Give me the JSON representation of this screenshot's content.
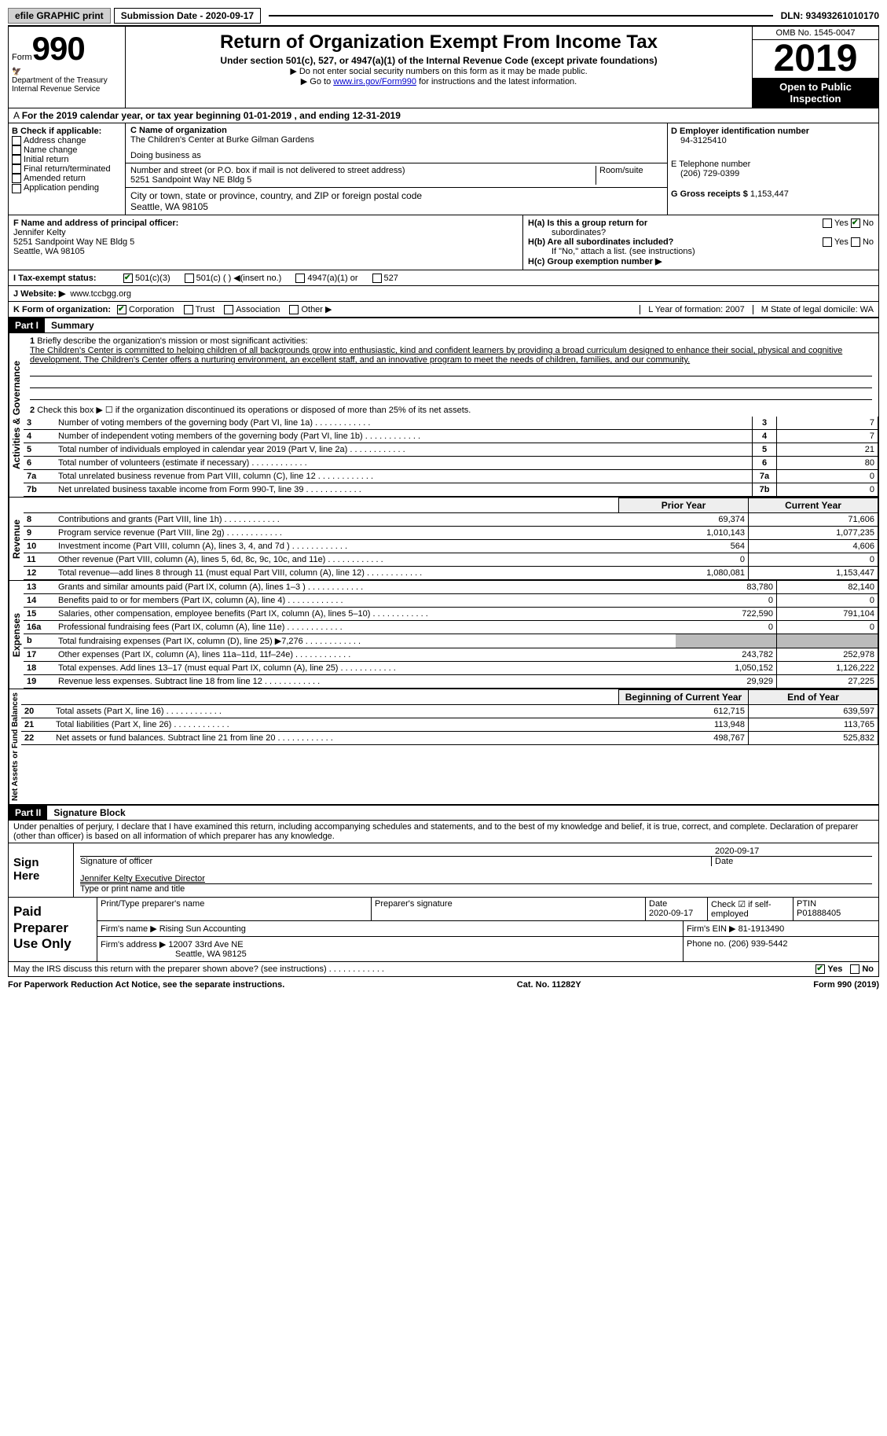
{
  "topbar": {
    "efile": "efile GRAPHIC print",
    "submission": "Submission Date - 2020-09-17",
    "dln": "DLN: 93493261010170"
  },
  "header": {
    "form": "Form",
    "num": "990",
    "dept": "Department of the Treasury\nInternal Revenue Service",
    "title": "Return of Organization Exempt From Income Tax",
    "sub": "Under section 501(c), 527, or 4947(a)(1) of the Internal Revenue Code (except private foundations)",
    "note1": "Do not enter social security numbers on this form as it may be made public.",
    "note2_pre": "Go to ",
    "note2_link": "www.irs.gov/Form990",
    "note2_post": " for instructions and the latest information.",
    "omb": "OMB No. 1545-0047",
    "year": "2019",
    "inspect": "Open to Public Inspection"
  },
  "ty_line": "For the 2019 calendar year, or tax year beginning 01-01-2019    , and ending 12-31-2019",
  "colB": {
    "hdr": "B Check if applicable:",
    "items": [
      "Address change",
      "Name change",
      "Initial return",
      "Final return/terminated",
      "Amended return",
      "Application pending"
    ]
  },
  "colC": {
    "name_lbl": "C Name of organization",
    "name": "The Children's Center at Burke Gilman Gardens",
    "dba": "Doing business as",
    "street_lbl": "Number and street (or P.O. box if mail is not delivered to street address)",
    "room_lbl": "Room/suite",
    "street": "5251 Sandpoint Way NE Bldg 5",
    "city_lbl": "City or town, state or province, country, and ZIP or foreign postal code",
    "city": "Seattle, WA  98105"
  },
  "colD": {
    "ein_lbl": "D Employer identification number",
    "ein": "94-3125410",
    "tel_lbl": "E Telephone number",
    "tel": "(206) 729-0399",
    "gross_lbl": "G Gross receipts $",
    "gross": "1,153,447"
  },
  "F": {
    "lbl": "F  Name and address of principal officer:",
    "name": "Jennifer Kelty",
    "addr1": "5251 Sandpoint Way NE Bldg 5",
    "addr2": "Seattle, WA  98105"
  },
  "H": {
    "a": "H(a)  Is this a group return for",
    "a2": "subordinates?",
    "yes": "Yes",
    "no": "No",
    "b": "H(b)  Are all subordinates included?",
    "b2": "If \"No,\" attach a list. (see instructions)",
    "c": "H(c)  Group exemption number ▶"
  },
  "I": {
    "lbl": "I   Tax-exempt status:",
    "opts": [
      "501(c)(3)",
      "501(c) (  ) ◀(insert no.)",
      "4947(a)(1) or",
      "527"
    ]
  },
  "J": {
    "lbl": "J   Website: ▶",
    "val": "www.tccbgg.org"
  },
  "K": {
    "lbl": "K Form of organization:",
    "opts": [
      "Corporation",
      "Trust",
      "Association",
      "Other ▶"
    ]
  },
  "LM": {
    "L": "L Year of formation: 2007",
    "M": "M State of legal domicile: WA"
  },
  "part1": {
    "hdr": "Part I",
    "title": "Summary",
    "vtab1": "Activities & Governance",
    "vtab2": "Revenue",
    "vtab3": "Expenses",
    "vtab4": "Net Assets or Fund Balances"
  },
  "line1": {
    "lbl": "Briefly describe the organization's mission or most significant activities:",
    "text": "The Children's Center is committed to helping children of all backgrounds grow into enthusiastic, kind and confident learners by providing a broad curriculum designed to enhance their social, physical and cognitive development. The Children's Center offers a nurturing environment, an excellent staff, and an innovative program to meet the needs of children, families, and our community."
  },
  "line2": "Check this box ▶ ☐  if the organization discontinued its operations or disposed of more than 25% of its net assets.",
  "govlines": [
    {
      "n": "3",
      "d": "Number of voting members of the governing body (Part VI, line 1a)",
      "v": "7"
    },
    {
      "n": "4",
      "d": "Number of independent voting members of the governing body (Part VI, line 1b)",
      "v": "7"
    },
    {
      "n": "5",
      "d": "Total number of individuals employed in calendar year 2019 (Part V, line 2a)",
      "v": "21"
    },
    {
      "n": "6",
      "d": "Total number of volunteers (estimate if necessary)",
      "v": "80"
    },
    {
      "n": "7a",
      "d": "Total unrelated business revenue from Part VIII, column (C), line 12",
      "v": "0"
    },
    {
      "n": "7b",
      "d": "Net unrelated business taxable income from Form 990-T, line 39",
      "v": "0"
    }
  ],
  "cols": {
    "prior": "Prior Year",
    "curr": "Current Year",
    "boy": "Beginning of Current Year",
    "eoy": "End of Year"
  },
  "revenue": [
    {
      "n": "8",
      "d": "Contributions and grants (Part VIII, line 1h)",
      "p": "69,374",
      "c": "71,606"
    },
    {
      "n": "9",
      "d": "Program service revenue (Part VIII, line 2g)",
      "p": "1,010,143",
      "c": "1,077,235"
    },
    {
      "n": "10",
      "d": "Investment income (Part VIII, column (A), lines 3, 4, and 7d )",
      "p": "564",
      "c": "4,606"
    },
    {
      "n": "11",
      "d": "Other revenue (Part VIII, column (A), lines 5, 6d, 8c, 9c, 10c, and 11e)",
      "p": "0",
      "c": "0"
    },
    {
      "n": "12",
      "d": "Total revenue—add lines 8 through 11 (must equal Part VIII, column (A), line 12)",
      "p": "1,080,081",
      "c": "1,153,447"
    }
  ],
  "expenses": [
    {
      "n": "13",
      "d": "Grants and similar amounts paid (Part IX, column (A), lines 1–3 )",
      "p": "83,780",
      "c": "82,140"
    },
    {
      "n": "14",
      "d": "Benefits paid to or for members (Part IX, column (A), line 4)",
      "p": "0",
      "c": "0"
    },
    {
      "n": "15",
      "d": "Salaries, other compensation, employee benefits (Part IX, column (A), lines 5–10)",
      "p": "722,590",
      "c": "791,104"
    },
    {
      "n": "16a",
      "d": "Professional fundraising fees (Part IX, column (A), line 11e)",
      "p": "0",
      "c": "0"
    },
    {
      "n": "b",
      "d": "Total fundraising expenses (Part IX, column (D), line 25) ▶7,276",
      "p": "grey",
      "c": "grey"
    },
    {
      "n": "17",
      "d": "Other expenses (Part IX, column (A), lines 11a–11d, 11f–24e)",
      "p": "243,782",
      "c": "252,978"
    },
    {
      "n": "18",
      "d": "Total expenses. Add lines 13–17 (must equal Part IX, column (A), line 25)",
      "p": "1,050,152",
      "c": "1,126,222"
    },
    {
      "n": "19",
      "d": "Revenue less expenses. Subtract line 18 from line 12",
      "p": "29,929",
      "c": "27,225"
    }
  ],
  "netassets": [
    {
      "n": "20",
      "d": "Total assets (Part X, line 16)",
      "p": "612,715",
      "c": "639,597"
    },
    {
      "n": "21",
      "d": "Total liabilities (Part X, line 26)",
      "p": "113,948",
      "c": "113,765"
    },
    {
      "n": "22",
      "d": "Net assets or fund balances. Subtract line 21 from line 20",
      "p": "498,767",
      "c": "525,832"
    }
  ],
  "part2": {
    "hdr": "Part II",
    "title": "Signature Block",
    "decl": "Under penalties of perjury, I declare that I have examined this return, including accompanying schedules and statements, and to the best of my knowledge and belief, it is true, correct, and complete. Declaration of preparer (other than officer) is based on all information of which preparer has any knowledge."
  },
  "sign": {
    "left": "Sign Here",
    "sig_lbl": "Signature of officer",
    "date_lbl": "Date",
    "date": "2020-09-17",
    "name": "Jennifer Kelty  Executive Director",
    "name_lbl": "Type or print name and title"
  },
  "prep": {
    "left": "Paid Preparer Use Only",
    "c1": "Print/Type preparer's name",
    "c2": "Preparer's signature",
    "c3": "Date",
    "c3v": "2020-09-17",
    "c4": "Check ☑ if self-employed",
    "c5": "PTIN",
    "c5v": "P01888405",
    "firm_lbl": "Firm's name   ▶",
    "firm": "Rising Sun Accounting",
    "ein_lbl": "Firm's EIN ▶",
    "ein": "81-1913490",
    "addr_lbl": "Firm's address ▶",
    "addr": "12007 33rd Ave NE",
    "addr2": "Seattle, WA  98125",
    "phone_lbl": "Phone no.",
    "phone": "(206) 939-5442"
  },
  "discuss": "May the IRS discuss this return with the preparer shown above? (see instructions)",
  "footer": {
    "l": "For Paperwork Reduction Act Notice, see the separate instructions.",
    "m": "Cat. No. 11282Y",
    "r": "Form 990 (2019)"
  }
}
